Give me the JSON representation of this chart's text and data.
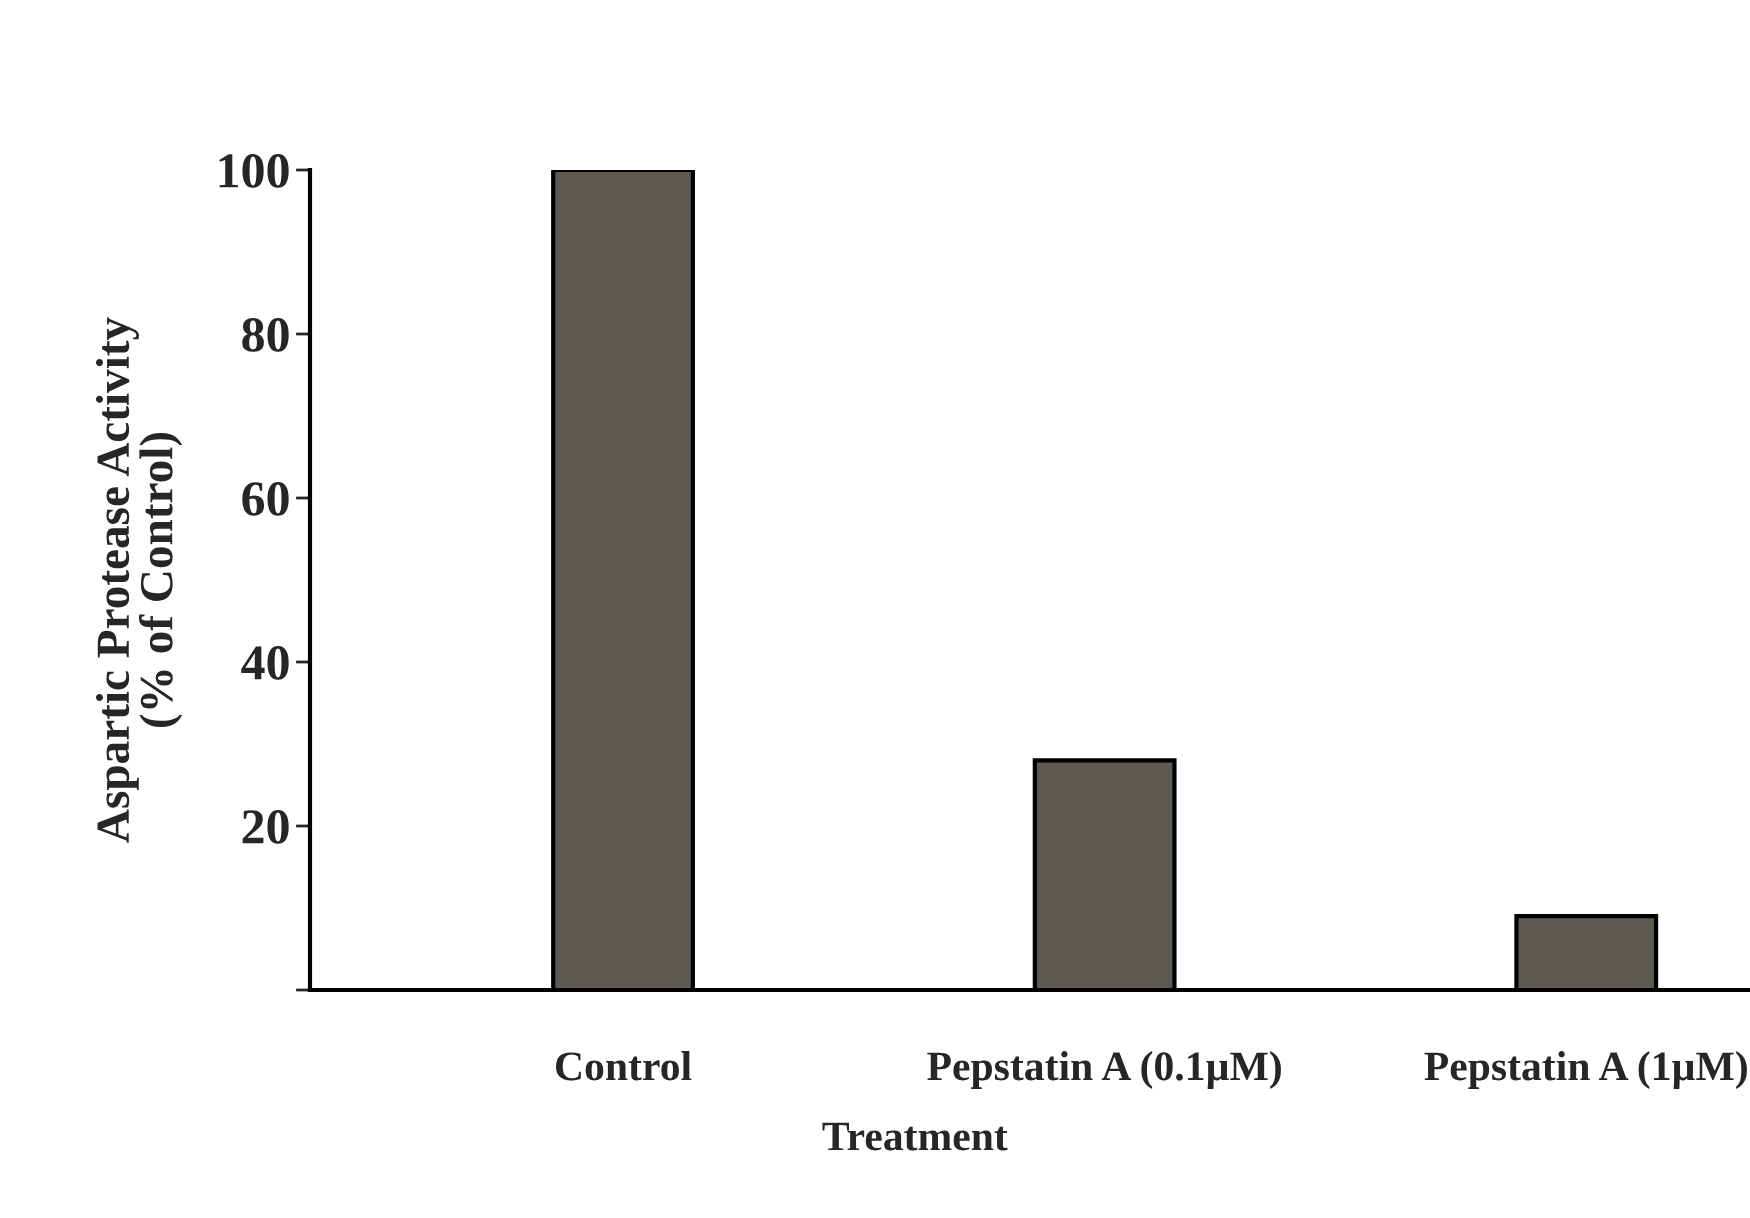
{
  "chart_data": {
    "type": "bar",
    "xlabel": "Treatment",
    "ylabel": "Aspartic Protease Activity\n(% of Control)",
    "categories": [
      "Control",
      "Pepstatin A (0.1µM)",
      "Pepstatin A (1µM)"
    ],
    "values": [
      100,
      28,
      9
    ],
    "color": "#5e5852",
    "ylim": [
      0,
      100
    ],
    "yticks": [
      {
        "value": 0,
        "label": null
      },
      20,
      40,
      60,
      80,
      100
    ],
    "grid": false
  }
}
